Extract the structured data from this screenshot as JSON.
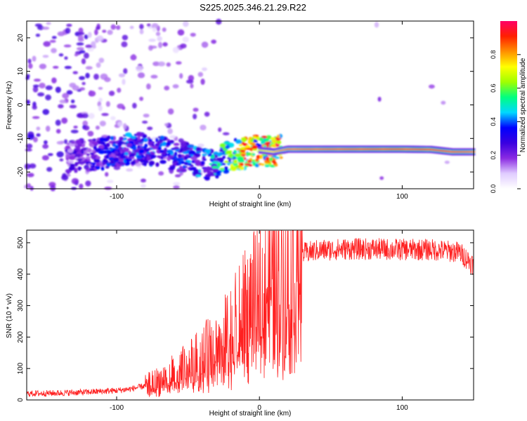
{
  "title": "S225.2025.346.21.29.R22",
  "chart_data": [
    {
      "type": "heatmap",
      "name": "spectrogram",
      "xlabel": "Height of straight line (km)",
      "ylabel": "Frequency (Hz)",
      "xlim": [
        -163,
        150
      ],
      "ylim": [
        -25,
        25
      ],
      "xticks": [
        -100,
        0,
        100
      ],
      "xtick_labels": [
        "-100",
        "0",
        "100"
      ],
      "yticks": [
        -20,
        -10,
        0,
        10,
        20
      ],
      "ytick_labels": [
        "-20",
        "-10",
        "0",
        "10",
        "20"
      ],
      "colorbar": {
        "label": "Normalized spectral amplitude",
        "range": [
          0,
          1
        ],
        "ticks": [
          0.0,
          0.2,
          0.4,
          0.6,
          0.8
        ],
        "tick_labels": [
          "0.0",
          "0.2",
          "0.4",
          "0.6",
          "0.8"
        ],
        "colors": [
          "#ffffff",
          "#e0ccff",
          "#8a2be2",
          "#3a00e0",
          "#0000ff",
          "#00d8ff",
          "#00ff80",
          "#a0ff00",
          "#ffff00",
          "#ff9000",
          "#ff2000",
          "#ff0066"
        ]
      },
      "ridge": {
        "description": "dominant spectral ridge frequency vs height",
        "x": [
          -163,
          -130,
          -110,
          -90,
          -70,
          -50,
          -35,
          -20,
          -10,
          0,
          10,
          20,
          50,
          80,
          100,
          120,
          135,
          150
        ],
        "y": [
          -16,
          -15.5,
          -14.5,
          -13,
          -13.5,
          -16,
          -18,
          -15,
          -14.5,
          -13.5,
          -14,
          -13.2,
          -13.2,
          -13.2,
          -13.2,
          -13.3,
          -14,
          -14
        ],
        "amplitude": [
          0.15,
          0.22,
          0.3,
          0.35,
          0.33,
          0.35,
          0.38,
          0.55,
          0.8,
          0.7,
          0.75,
          0.85,
          0.88,
          0.9,
          0.92,
          0.9,
          0.88,
          0.85
        ]
      }
    },
    {
      "type": "line",
      "name": "snr",
      "xlabel": "Height of straight line (km)",
      "ylabel": "SNR (10 * v/v)",
      "xlim": [
        -163,
        150
      ],
      "ylim": [
        0,
        540
      ],
      "xticks": [
        -100,
        0,
        100
      ],
      "xtick_labels": [
        "-100",
        "0",
        "100"
      ],
      "yticks": [
        0,
        100,
        200,
        300,
        400,
        500
      ],
      "ytick_labels": [
        "0",
        "100",
        "200",
        "300",
        "400",
        "500"
      ],
      "color": "#ff2020",
      "series": [
        {
          "name": "SNR",
          "x": [
            -163,
            -140,
            -120,
            -100,
            -90,
            -80,
            -70,
            -60,
            -50,
            -40,
            -30,
            -20,
            -10,
            0,
            5,
            10,
            15,
            20,
            25,
            30,
            40,
            60,
            80,
            100,
            120,
            140,
            150
          ],
          "y": [
            20,
            22,
            25,
            30,
            35,
            45,
            60,
            80,
            100,
            130,
            160,
            200,
            260,
            320,
            360,
            390,
            410,
            430,
            450,
            465,
            475,
            480,
            480,
            478,
            478,
            470,
            430
          ]
        }
      ]
    }
  ]
}
